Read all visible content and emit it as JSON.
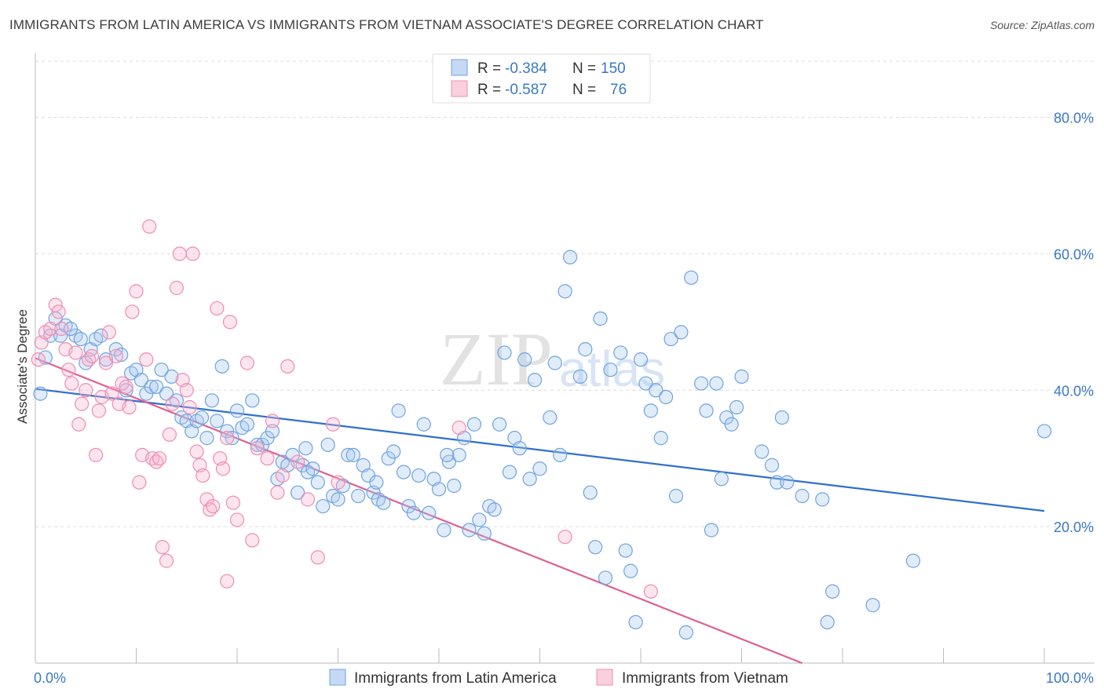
{
  "title": "IMMIGRANTS FROM LATIN AMERICA VS IMMIGRANTS FROM VIETNAM ASSOCIATE'S DEGREE CORRELATION CHART",
  "source": "Source: ZipAtlas.com",
  "watermark": "ZIPatlas",
  "colors": {
    "blue": "#6fa3e0",
    "blue_line": "#2f6fce",
    "pink": "#f08db0",
    "pink_line": "#e0608f",
    "axis_text": "#3b78c4"
  },
  "legend": {
    "rows": [
      {
        "r_label": "R =",
        "r_value": "-0.384",
        "n_label": "N =",
        "n_value": "150"
      },
      {
        "r_label": "R =",
        "r_value": "-0.587",
        "n_label": "N =",
        "n_value": "76"
      }
    ]
  },
  "bottom_legend": [
    "Immigrants from Latin America",
    "Immigrants from Vietnam"
  ],
  "chart_data": {
    "type": "scatter",
    "title": "IMMIGRANTS FROM LATIN AMERICA VS IMMIGRANTS FROM VIETNAM ASSOCIATE'S DEGREE CORRELATION CHART",
    "xlabel": "",
    "ylabel": "Associate's Degree",
    "xlim": [
      0,
      100
    ],
    "ylim": [
      0,
      80
    ],
    "x_ticks_labels": [
      "0.0%",
      "100.0%"
    ],
    "y_ticks_labels": [
      "20.0%",
      "40.0%",
      "60.0%",
      "80.0%"
    ],
    "y_ticks": [
      20,
      40,
      60,
      80
    ],
    "grid": "horizontal-dashed",
    "legend_position": "top-center",
    "series": [
      {
        "name": "Immigrants from Latin America",
        "color": "#6fa3e0",
        "trend": {
          "x": [
            0,
            100
          ],
          "y": [
            40.2,
            22.3
          ]
        },
        "points": [
          [
            0.5,
            39.5
          ],
          [
            1.0,
            44.8
          ],
          [
            1.5,
            48.0
          ],
          [
            2.0,
            50.5
          ],
          [
            2.5,
            48.0
          ],
          [
            3.0,
            49.5
          ],
          [
            4.0,
            48.0
          ],
          [
            4.5,
            47.5
          ],
          [
            5.0,
            44.0
          ],
          [
            5.5,
            46.0
          ],
          [
            6.0,
            47.5
          ],
          [
            6.5,
            48.0
          ],
          [
            7.0,
            44.5
          ],
          [
            8.0,
            46.0
          ],
          [
            8.5,
            45.2
          ],
          [
            9.0,
            40.0
          ],
          [
            9.5,
            42.5
          ],
          [
            10.0,
            43.0
          ],
          [
            10.5,
            41.5
          ],
          [
            11.0,
            39.5
          ],
          [
            11.5,
            40.5
          ],
          [
            12.0,
            40.5
          ],
          [
            13.0,
            39.5
          ],
          [
            13.5,
            42.0
          ],
          [
            14.0,
            38.5
          ],
          [
            14.5,
            36.0
          ],
          [
            15.0,
            35.5
          ],
          [
            15.5,
            34.0
          ],
          [
            16.0,
            35.5
          ],
          [
            16.5,
            36.0
          ],
          [
            17.0,
            33.0
          ],
          [
            17.5,
            38.5
          ],
          [
            18.0,
            35.5
          ],
          [
            18.5,
            43.5
          ],
          [
            19.0,
            34.0
          ],
          [
            19.5,
            33.0
          ],
          [
            20.0,
            37.0
          ],
          [
            20.5,
            34.5
          ],
          [
            21.0,
            35.0
          ],
          [
            21.5,
            38.5
          ],
          [
            22.0,
            32.0
          ],
          [
            22.5,
            32.0
          ],
          [
            23.0,
            33.0
          ],
          [
            23.5,
            34.0
          ],
          [
            24.0,
            27.0
          ],
          [
            24.5,
            29.5
          ],
          [
            25.0,
            29.0
          ],
          [
            25.5,
            30.5
          ],
          [
            26.0,
            25.0
          ],
          [
            26.5,
            29.0
          ],
          [
            27.0,
            28.0
          ],
          [
            27.5,
            28.5
          ],
          [
            28.0,
            26.5
          ],
          [
            28.5,
            23.0
          ],
          [
            29.0,
            32.0
          ],
          [
            29.5,
            24.5
          ],
          [
            30.0,
            24.0
          ],
          [
            30.5,
            26.0
          ],
          [
            31.0,
            30.5
          ],
          [
            31.5,
            30.5
          ],
          [
            32.0,
            24.5
          ],
          [
            32.5,
            29.0
          ],
          [
            33.0,
            27.5
          ],
          [
            33.5,
            25.0
          ],
          [
            34.0,
            24.0
          ],
          [
            34.5,
            23.5
          ],
          [
            35.0,
            30.0
          ],
          [
            35.5,
            31.0
          ],
          [
            36.0,
            37.0
          ],
          [
            36.5,
            28.0
          ],
          [
            37.0,
            23.0
          ],
          [
            37.5,
            22.0
          ],
          [
            38.0,
            27.5
          ],
          [
            38.5,
            35.0
          ],
          [
            39.0,
            22.0
          ],
          [
            39.5,
            27.0
          ],
          [
            40.0,
            25.5
          ],
          [
            40.5,
            19.5
          ],
          [
            41.0,
            29.5
          ],
          [
            41.5,
            26.0
          ],
          [
            42.0,
            30.5
          ],
          [
            42.5,
            33.0
          ],
          [
            43.0,
            19.5
          ],
          [
            43.5,
            35.0
          ],
          [
            44.0,
            21.0
          ],
          [
            44.5,
            19.0
          ],
          [
            45.0,
            23.0
          ],
          [
            45.5,
            22.5
          ],
          [
            46.0,
            35.0
          ],
          [
            46.5,
            45.5
          ],
          [
            47.0,
            28.0
          ],
          [
            47.5,
            33.0
          ],
          [
            48.0,
            31.5
          ],
          [
            48.5,
            44.5
          ],
          [
            49.0,
            27.0
          ],
          [
            49.5,
            41.5
          ],
          [
            50.0,
            28.5
          ],
          [
            51.0,
            36.0
          ],
          [
            51.5,
            44.0
          ],
          [
            52.0,
            30.5
          ],
          [
            52.5,
            54.5
          ],
          [
            53.0,
            59.5
          ],
          [
            54.0,
            42.0
          ],
          [
            54.5,
            46.0
          ],
          [
            55.0,
            25.0
          ],
          [
            55.5,
            17.0
          ],
          [
            56.0,
            50.5
          ],
          [
            56.5,
            12.5
          ],
          [
            57.0,
            43.0
          ],
          [
            58.0,
            45.5
          ],
          [
            58.5,
            16.5
          ],
          [
            59.0,
            13.5
          ],
          [
            59.5,
            6.0
          ],
          [
            60.0,
            44.5
          ],
          [
            60.5,
            41.0
          ],
          [
            61.0,
            37.0
          ],
          [
            61.5,
            40.0
          ],
          [
            62.0,
            33.0
          ],
          [
            62.5,
            39.0
          ],
          [
            63.0,
            47.5
          ],
          [
            63.5,
            24.5
          ],
          [
            64.0,
            48.5
          ],
          [
            64.5,
            4.5
          ],
          [
            65.0,
            56.5
          ],
          [
            66.0,
            41.0
          ],
          [
            66.5,
            37.0
          ],
          [
            67.0,
            19.5
          ],
          [
            67.5,
            41.0
          ],
          [
            68.0,
            27.0
          ],
          [
            68.5,
            36.0
          ],
          [
            69.0,
            35.0
          ],
          [
            69.5,
            37.5
          ],
          [
            70.0,
            42.0
          ],
          [
            72.0,
            31.0
          ],
          [
            73.0,
            29.0
          ],
          [
            73.5,
            26.5
          ],
          [
            74.0,
            36.0
          ],
          [
            74.5,
            26.5
          ],
          [
            76.0,
            24.5
          ],
          [
            78.0,
            24.0
          ],
          [
            78.5,
            6.0
          ],
          [
            79.0,
            10.5
          ],
          [
            83.0,
            8.5
          ],
          [
            87.0,
            15.0
          ],
          [
            100.0,
            34.0
          ],
          [
            3.5,
            49.0
          ],
          [
            12.5,
            43.0
          ],
          [
            26.8,
            31.5
          ],
          [
            33.8,
            26.5
          ],
          [
            40.8,
            30.5
          ]
        ]
      },
      {
        "name": "Immigrants from Vietnam",
        "color": "#f08db0",
        "trend": {
          "x": [
            0,
            76
          ],
          "y": [
            44.7,
            0.0
          ]
        },
        "points": [
          [
            0.3,
            44.5
          ],
          [
            0.6,
            47.0
          ],
          [
            1.0,
            48.5
          ],
          [
            1.5,
            49.0
          ],
          [
            2.0,
            52.5
          ],
          [
            2.3,
            51.5
          ],
          [
            2.6,
            49.0
          ],
          [
            3.0,
            46.0
          ],
          [
            3.3,
            43.0
          ],
          [
            3.6,
            41.0
          ],
          [
            4.0,
            45.5
          ],
          [
            4.3,
            35.0
          ],
          [
            4.6,
            38.0
          ],
          [
            5.0,
            40.0
          ],
          [
            5.3,
            44.5
          ],
          [
            5.6,
            45.0
          ],
          [
            6.0,
            30.5
          ],
          [
            6.3,
            37.0
          ],
          [
            6.6,
            39.0
          ],
          [
            7.0,
            44.0
          ],
          [
            7.3,
            48.5
          ],
          [
            7.6,
            39.5
          ],
          [
            8.0,
            45.0
          ],
          [
            8.3,
            38.0
          ],
          [
            8.6,
            41.0
          ],
          [
            9.0,
            40.5
          ],
          [
            9.3,
            37.5
          ],
          [
            9.6,
            51.5
          ],
          [
            10.0,
            54.5
          ],
          [
            10.3,
            26.5
          ],
          [
            10.6,
            30.5
          ],
          [
            11.0,
            44.5
          ],
          [
            11.3,
            64.0
          ],
          [
            11.6,
            30.0
          ],
          [
            12.0,
            29.5
          ],
          [
            12.3,
            30.0
          ],
          [
            12.6,
            17.0
          ],
          [
            13.0,
            15.0
          ],
          [
            13.3,
            33.5
          ],
          [
            13.6,
            38.0
          ],
          [
            14.0,
            55.0
          ],
          [
            14.3,
            60.0
          ],
          [
            14.6,
            41.5
          ],
          [
            15.0,
            40.0
          ],
          [
            15.3,
            37.5
          ],
          [
            15.6,
            60.0
          ],
          [
            16.0,
            31.0
          ],
          [
            16.3,
            29.0
          ],
          [
            16.6,
            27.5
          ],
          [
            17.0,
            24.0
          ],
          [
            17.3,
            22.5
          ],
          [
            17.6,
            23.0
          ],
          [
            18.0,
            52.0
          ],
          [
            18.3,
            30.0
          ],
          [
            18.6,
            28.5
          ],
          [
            19.0,
            12.0
          ],
          [
            19.3,
            50.0
          ],
          [
            19.6,
            23.5
          ],
          [
            20.0,
            21.0
          ],
          [
            21.0,
            44.0
          ],
          [
            21.5,
            18.0
          ],
          [
            22.0,
            31.5
          ],
          [
            23.0,
            30.0
          ],
          [
            24.0,
            25.0
          ],
          [
            24.5,
            27.5
          ],
          [
            25.0,
            43.5
          ],
          [
            26.0,
            29.5
          ],
          [
            27.0,
            24.0
          ],
          [
            28.0,
            15.5
          ],
          [
            29.5,
            35.0
          ],
          [
            30.0,
            26.5
          ],
          [
            42.0,
            34.5
          ],
          [
            52.5,
            18.5
          ],
          [
            61.0,
            10.5
          ],
          [
            23.5,
            35.5
          ],
          [
            19.0,
            33.0
          ]
        ]
      }
    ]
  }
}
